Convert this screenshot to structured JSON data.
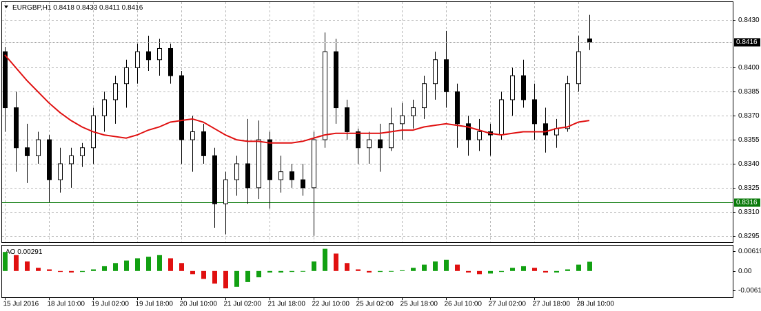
{
  "chart_data": [
    {
      "type": "candlestick",
      "title": "EURGBP,H1",
      "categories": [
        "15 Jul 2016",
        null,
        null,
        null,
        "18 Jul 10:00",
        null,
        null,
        null,
        "19 Jul 02:00",
        null,
        null,
        null,
        "19 Jul 18:00",
        null,
        null,
        null,
        "20 Jul 10:00",
        null,
        null,
        null,
        "21 Jul 02:00",
        null,
        null,
        null,
        "21 Jul 18:00",
        null,
        null,
        null,
        "22 Jul 10:00",
        null,
        null,
        null,
        "25 Jul 02:00",
        null,
        null,
        null,
        "25 Jul 18:00",
        null,
        null,
        null,
        "26 Jul 10:00",
        null,
        null,
        null,
        "27 Jul 02:00",
        null,
        null,
        null,
        "27 Jul 18:00",
        null,
        null,
        null,
        "28 Jul 10:00",
        null
      ],
      "open": [
        0.841,
        0.8375,
        0.835,
        0.8345,
        0.8355,
        0.833,
        0.834,
        0.8345,
        0.835,
        0.837,
        0.838,
        0.839,
        0.84,
        0.841,
        0.8405,
        0.8412,
        0.8395,
        0.8355,
        0.836,
        0.8345,
        0.8315,
        0.833,
        0.834,
        0.8325,
        0.8355,
        0.833,
        0.8335,
        0.833,
        0.8325,
        0.8355,
        0.841,
        0.8375,
        0.836,
        0.835,
        0.8355,
        0.835,
        0.8365,
        0.837,
        0.8375,
        0.839,
        0.8405,
        0.8385,
        0.8365,
        0.8355,
        0.836,
        0.8358,
        0.838,
        0.8395,
        0.838,
        0.8365,
        0.8358,
        0.8362,
        0.839,
        0.8418
      ],
      "high": [
        0.8413,
        0.8385,
        0.8365,
        0.836,
        0.8358,
        0.835,
        0.835,
        0.8353,
        0.8375,
        0.8385,
        0.8395,
        0.8405,
        0.8415,
        0.842,
        0.8418,
        0.8415,
        0.8398,
        0.837,
        0.8365,
        0.835,
        0.8335,
        0.8345,
        0.8368,
        0.8367,
        0.836,
        0.8345,
        0.834,
        0.834,
        0.836,
        0.8422,
        0.8418,
        0.838,
        0.8362,
        0.836,
        0.8365,
        0.8375,
        0.8378,
        0.838,
        0.8395,
        0.841,
        0.8423,
        0.839,
        0.837,
        0.8368,
        0.8365,
        0.8385,
        0.84,
        0.8405,
        0.839,
        0.8375,
        0.8368,
        0.8395,
        0.842,
        0.8433
      ],
      "low": [
        0.836,
        0.8335,
        0.8328,
        0.834,
        0.8316,
        0.8322,
        0.8325,
        0.8338,
        0.834,
        0.836,
        0.8365,
        0.8375,
        0.839,
        0.8398,
        0.8395,
        0.839,
        0.834,
        0.8335,
        0.834,
        0.83,
        0.8296,
        0.832,
        0.8315,
        0.8318,
        0.8312,
        0.8322,
        0.8325,
        0.832,
        0.8295,
        0.835,
        0.8365,
        0.8355,
        0.834,
        0.834,
        0.8335,
        0.8348,
        0.8355,
        0.8362,
        0.8368,
        0.838,
        0.8375,
        0.835,
        0.8345,
        0.8348,
        0.8345,
        0.8355,
        0.837,
        0.8375,
        0.8355,
        0.8347,
        0.835,
        0.836,
        0.8385,
        0.8411
      ],
      "close": [
        0.8375,
        0.835,
        0.8345,
        0.8355,
        0.833,
        0.834,
        0.8345,
        0.835,
        0.837,
        0.838,
        0.839,
        0.84,
        0.841,
        0.8405,
        0.8412,
        0.8395,
        0.8355,
        0.836,
        0.8345,
        0.8315,
        0.833,
        0.834,
        0.8325,
        0.8355,
        0.833,
        0.8335,
        0.833,
        0.8325,
        0.8355,
        0.841,
        0.8375,
        0.836,
        0.835,
        0.8355,
        0.835,
        0.8365,
        0.837,
        0.8375,
        0.839,
        0.8405,
        0.8385,
        0.8365,
        0.8355,
        0.836,
        0.8358,
        0.838,
        0.8395,
        0.838,
        0.8365,
        0.8358,
        0.8362,
        0.839,
        0.841,
        0.8416
      ],
      "ma": {
        "color": "#e01010",
        "values": [
          0.8408,
          0.84,
          0.8392,
          0.8385,
          0.8378,
          0.8372,
          0.8367,
          0.8363,
          0.836,
          0.8358,
          0.8357,
          0.8356,
          0.8358,
          0.8361,
          0.8363,
          0.8366,
          0.8367,
          0.8368,
          0.8366,
          0.8362,
          0.8358,
          0.8355,
          0.8354,
          0.8354,
          0.8353,
          0.8353,
          0.8353,
          0.8354,
          0.8356,
          0.8358,
          0.8359,
          0.8359,
          0.8359,
          0.8359,
          0.8359,
          0.836,
          0.8361,
          0.8361,
          0.8363,
          0.8364,
          0.8365,
          0.8364,
          0.8363,
          0.8361,
          0.8359,
          0.8358,
          0.8359,
          0.836,
          0.836,
          0.836,
          0.8362,
          0.8363,
          0.8366,
          0.8367
        ]
      },
      "level": {
        "value": 0.8316,
        "color": "#0a7a0a"
      },
      "ylim": [
        0.8291,
        0.8441
      ],
      "yticks": [
        {
          "value": 0.843,
          "label": "0.8430"
        },
        {
          "value": 0.84,
          "label": "0.8400"
        },
        {
          "value": 0.8385,
          "label": "0.8385"
        },
        {
          "value": 0.837,
          "label": "0.8370"
        },
        {
          "value": 0.8355,
          "label": "0.8355"
        },
        {
          "value": 0.834,
          "label": "0.8340"
        },
        {
          "value": 0.8325,
          "label": "0.8325"
        },
        {
          "value": 0.831,
          "label": "0.8310"
        },
        {
          "value": 0.8295,
          "label": "0.8295"
        }
      ],
      "grid": true
    },
    {
      "type": "histogram",
      "title": "AO",
      "values": [
        0.006,
        0.005,
        0.003,
        0.001,
        0.0005,
        -0.0003,
        -0.0005,
        -0.0003,
        0.0005,
        0.0015,
        0.0025,
        0.0033,
        0.004,
        0.0045,
        0.005,
        0.004,
        0.0025,
        -0.001,
        -0.0025,
        -0.004,
        -0.0055,
        -0.005,
        -0.0035,
        -0.002,
        -0.0005,
        -0.0005,
        -0.0003,
        0.0,
        0.003,
        0.007,
        0.0055,
        0.0025,
        0.0005,
        -0.0005,
        -0.0003,
        0.0,
        0.0002,
        0.001,
        0.002,
        0.003,
        0.0035,
        0.002,
        -0.0005,
        -0.001,
        -0.0008,
        -0.0003,
        0.001,
        0.0015,
        0.001,
        -0.0005,
        -0.0005,
        0.0005,
        0.002,
        0.00291
      ],
      "up_color": "#12a012",
      "down_color": "#e01010",
      "ylim": [
        -0.0083,
        0.008
      ],
      "yticks": [
        0.00619,
        {
          "value": 0,
          "label": "0.00"
        },
        -0.00612
      ]
    }
  ]
}
